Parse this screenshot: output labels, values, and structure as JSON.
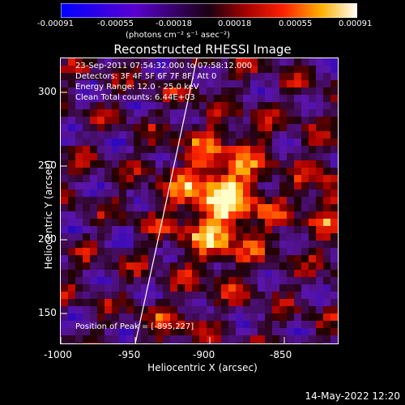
{
  "colorbar": {
    "tick_labels": [
      "-0.00091",
      "-0.00055",
      "-0.00018",
      "0.00018",
      "0.00055",
      "0.00091"
    ],
    "units": "(photons cm⁻² s⁻¹ asec⁻²)"
  },
  "title": "Reconstructed RHESSI Image",
  "info_lines": [
    "23-Sep-2011 07:54:32.000 to 07:58:12.000",
    "Detectors: 3F 4F 5F 6F 7F 8F, Att 0",
    "Energy Range: 12.0 - 25.0 keV",
    "Clean     Total counts: 6.44E+03"
  ],
  "peak_label": "Position of Peak = [-895,227]",
  "y_axis": {
    "label": "Heliocentric Y (arcsec)",
    "ticks": [
      "300",
      "250",
      "200",
      "150"
    ]
  },
  "x_axis": {
    "label": "Heliocentric X (arcsec)",
    "ticks": [
      "-1000",
      "-950",
      "-900",
      "-850"
    ]
  },
  "date_stamp": "14-May-2022 12:20",
  "colors": {
    "background": "#000000",
    "limb": "#ffffff"
  }
}
